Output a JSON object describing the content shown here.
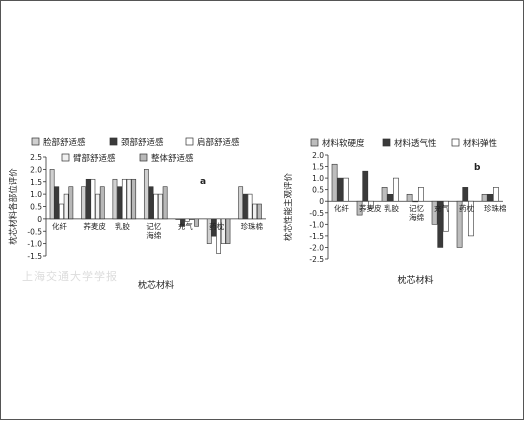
{
  "chart_data": [
    {
      "type": "bar",
      "panel_label": "a",
      "ylabel": "枕芯材料各部位评价",
      "xlabel": "枕芯材料",
      "ylim": [
        -1.5,
        2.5
      ],
      "yticks": [
        "-1.5",
        "-1.0",
        "-0.5",
        "0",
        "0.5",
        "1.0",
        "1.5",
        "2.0",
        "2.5"
      ],
      "categories": [
        "化纤",
        "荞麦皮",
        "乳胶",
        "记忆\n海绵",
        "充气",
        "药枕",
        "珍珠棉"
      ],
      "legend_position": "top",
      "series": [
        {
          "name": "脸部舒适感",
          "color": "#d0d0d0",
          "values": [
            2.0,
            1.3,
            1.6,
            2.0,
            0.0,
            -1.0,
            1.3
          ]
        },
        {
          "name": "颈部舒适感",
          "color": "#3a3a3a",
          "values": [
            1.3,
            1.6,
            1.3,
            1.3,
            -0.3,
            -0.7,
            1.0
          ]
        },
        {
          "name": "肩部舒适感",
          "color": "#ffffff",
          "values": [
            0.6,
            1.6,
            1.6,
            1.0,
            -0.1,
            -1.4,
            1.0
          ]
        },
        {
          "name": "臂部舒适感",
          "color": "#f0f0f0",
          "values": [
            1.0,
            1.0,
            1.6,
            1.0,
            0.0,
            -1.0,
            0.6
          ]
        },
        {
          "name": "整体舒适感",
          "color": "#b8b8b8",
          "values": [
            1.3,
            1.3,
            1.6,
            1.3,
            -0.3,
            -1.0,
            0.6
          ]
        }
      ]
    },
    {
      "type": "bar",
      "panel_label": "b",
      "ylabel": "枕芯性能主观评价",
      "xlabel": "枕芯材料",
      "ylim": [
        -2.5,
        2.0
      ],
      "yticks": [
        "-2.5",
        "-2.0",
        "-1.5",
        "-1.0",
        "-0.5",
        "0",
        "0.5",
        "1.0",
        "1.5",
        "2.0"
      ],
      "categories": [
        "化纤",
        "荞麦皮",
        "乳胶",
        "记忆\n海绵",
        "充气",
        "药枕",
        "珍珠棉"
      ],
      "legend_position": "top",
      "series": [
        {
          "name": "材料软硬度",
          "color": "#bdbdbd",
          "values": [
            1.6,
            -0.6,
            0.6,
            0.3,
            -1.0,
            -2.0,
            0.3
          ]
        },
        {
          "name": "材料透气性",
          "color": "#3a3a3a",
          "values": [
            1.0,
            1.3,
            0.3,
            0.0,
            -2.0,
            0.6,
            0.3
          ]
        },
        {
          "name": "材料弹性",
          "color": "#ffffff",
          "values": [
            1.0,
            -0.3,
            1.0,
            0.6,
            -1.3,
            -1.5,
            0.6
          ]
        }
      ]
    }
  ],
  "watermark": "上海交通大学学报"
}
